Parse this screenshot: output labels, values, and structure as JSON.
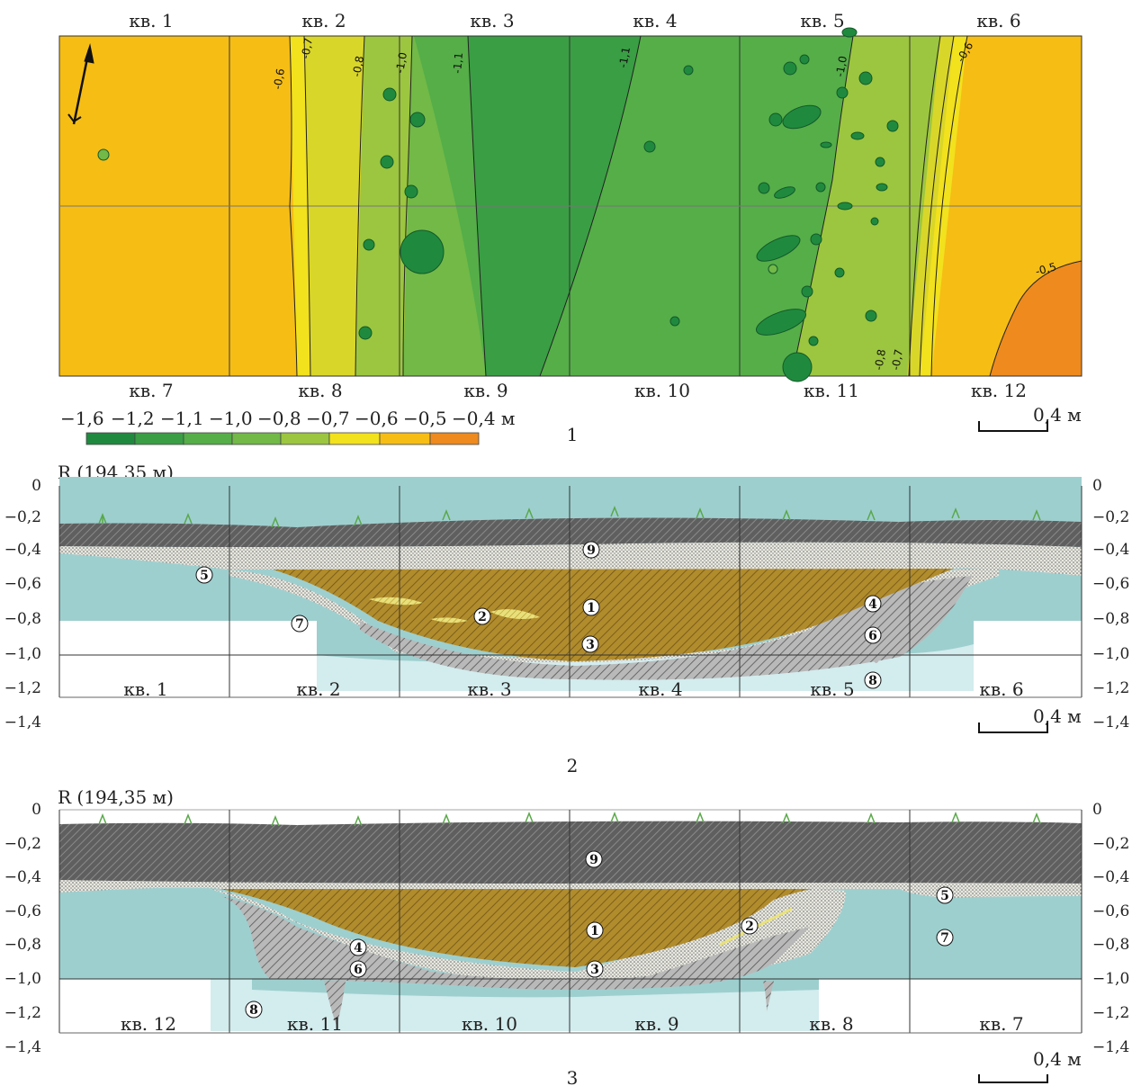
{
  "plan": {
    "squares_top": [
      "кв. 1",
      "кв. 2",
      "кв. 3",
      "кв. 4",
      "кв. 5",
      "кв. 6"
    ],
    "squares_bottom": [
      "кв. 7",
      "кв. 8",
      "кв. 9",
      "кв. 10",
      "кв. 11",
      "кв. 12"
    ],
    "isolines": [
      {
        "value": "-0,6",
        "cls": "iso-06a"
      },
      {
        "value": "-0,7",
        "cls": "iso-07a"
      },
      {
        "value": "-0,8",
        "cls": "iso-08a"
      },
      {
        "value": "-1,0",
        "cls": "iso-10a"
      },
      {
        "value": "-1,1",
        "cls": "iso-11a"
      },
      {
        "value": "-1,1",
        "cls": "iso-11b"
      },
      {
        "value": "-1,0",
        "cls": "iso-10b"
      },
      {
        "value": "-0,6",
        "cls": "iso-06b"
      },
      {
        "value": "-0,5",
        "cls": "iso-05"
      },
      {
        "value": "-0,8",
        "cls": "iso-08b"
      },
      {
        "value": "-0,7",
        "cls": "iso-07b"
      }
    ],
    "figure_number": "1",
    "scale_label": "0,4 м",
    "north_arrow": "north-arrow-icon"
  },
  "legend": {
    "labels": [
      "−1,6",
      "−1,2",
      "−1,1",
      "−1,0",
      "−0,8",
      "−0,7",
      "−0,6",
      "−0,5",
      "−0,4 м"
    ],
    "colors": [
      "#1f8a3e",
      "#3a9e44",
      "#55ae48",
      "#72b947",
      "#9cc63f",
      "#d9d62a",
      "#f2e11d",
      "#f6bd14",
      "#ee8a1e"
    ]
  },
  "section1": {
    "reference": "R (194,35 м)",
    "y_ticks": [
      "0",
      "−0,2",
      "−0,4",
      "−0,6",
      "−0,8",
      "−1,0",
      "−1,2",
      "−1,4"
    ],
    "squares": [
      "кв. 1",
      "кв. 2",
      "кв. 3",
      "кв. 4",
      "кв. 5",
      "кв. 6"
    ],
    "layer_markers": [
      "9",
      "5",
      "1",
      "2",
      "7",
      "3",
      "4",
      "6",
      "8"
    ],
    "figure_number": "2",
    "scale_label": "0,4 м"
  },
  "section2": {
    "reference": "R (194,35 м)",
    "y_ticks": [
      "0",
      "−0,2",
      "−0,4",
      "−0,6",
      "−0,8",
      "−1,0",
      "−1,2",
      "−1,4"
    ],
    "squares": [
      "кв. 12",
      "кв. 11",
      "кв. 10",
      "кв. 9",
      "кв. 8",
      "кв. 7"
    ],
    "layer_markers": [
      "9",
      "5",
      "1",
      "2",
      "7",
      "4",
      "6",
      "3",
      "8"
    ],
    "figure_number": "3",
    "scale_label": "0,4 м"
  },
  "colors": {
    "humus": "#6b6b6b",
    "fill_brown": "#a8862e",
    "fill_sand": "#dfe0d8",
    "subsoil": "#9ecfcf",
    "subsoil_light": "#d3ecee",
    "lens_yellow": "#e9e27a"
  }
}
